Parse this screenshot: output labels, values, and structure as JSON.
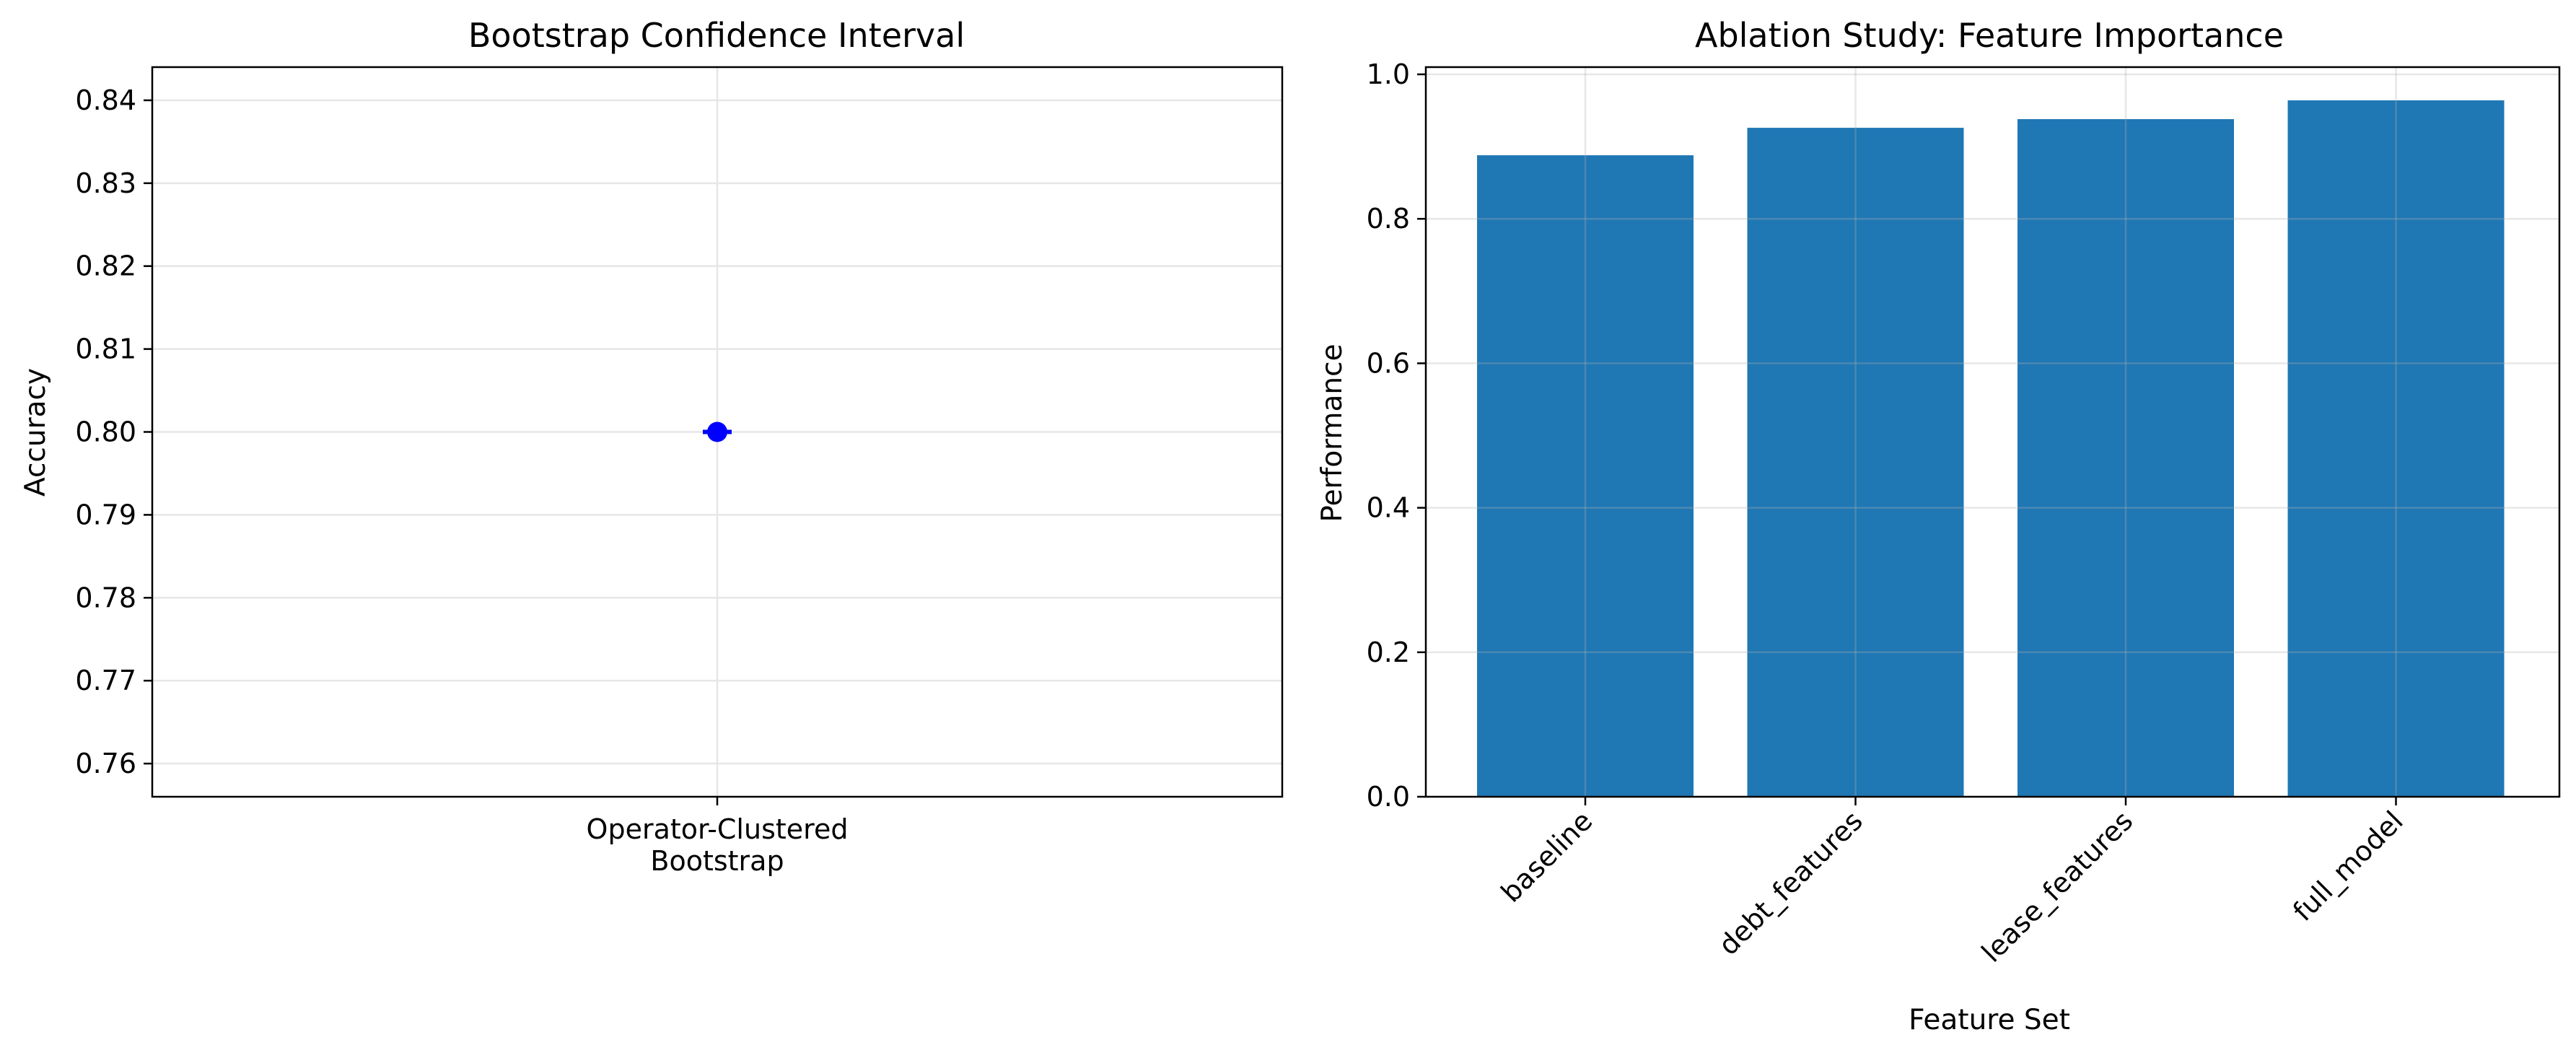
{
  "chart_data": [
    {
      "type": "scatter",
      "title": "Bootstrap Confidence Interval",
      "xlabel": "",
      "ylabel": "Accuracy",
      "categories": [
        "Operator-Clustered\nBootstrap"
      ],
      "values": [
        0.8
      ],
      "error": {
        "lower": 0.8,
        "upper": 0.8
      },
      "ylim": [
        0.756,
        0.844
      ],
      "yticks": [
        0.76,
        0.77,
        0.78,
        0.79,
        0.8,
        0.81,
        0.82,
        0.83,
        0.84
      ],
      "grid": true,
      "marker_color": "#0000ff"
    },
    {
      "type": "bar",
      "title": "Ablation Study: Feature Importance",
      "xlabel": "Feature Set",
      "ylabel": "Performance",
      "categories": [
        "baseline",
        "debt_features",
        "lease_features",
        "full_model"
      ],
      "values": [
        0.888,
        0.926,
        0.938,
        0.964
      ],
      "ylim": [
        0,
        1.01
      ],
      "yticks": [
        0.0,
        0.2,
        0.4,
        0.6,
        0.8,
        1.0
      ],
      "grid": true,
      "bar_color": "#1f77b4"
    }
  ]
}
